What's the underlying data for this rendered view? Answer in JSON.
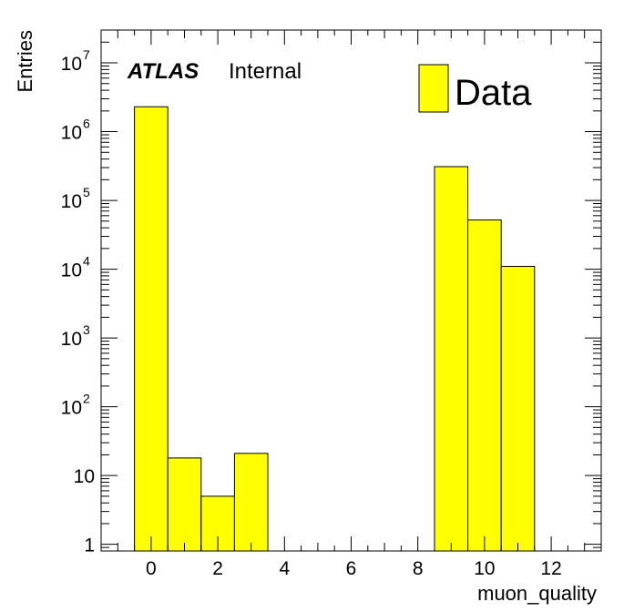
{
  "chart_data": {
    "type": "bar",
    "histogram": true,
    "xlabel": "muon_quality",
    "ylabel": "Entries",
    "xlim": [
      -1.5,
      13.5
    ],
    "ylim": [
      0.8,
      30000000
    ],
    "log_y": true,
    "bin_edges": [
      -0.5,
      0.5,
      1.5,
      2.5,
      3.5,
      4.5,
      5.5,
      6.5,
      7.5,
      8.5,
      9.5,
      10.5,
      11.5
    ],
    "values": [
      2300000,
      18,
      5,
      21,
      0,
      0,
      0,
      0,
      0,
      310000,
      52000,
      11000
    ],
    "series": [
      {
        "name": "Data",
        "color": "#ffff00"
      }
    ],
    "x_ticks": [
      0,
      2,
      4,
      6,
      8,
      10,
      12
    ],
    "x_tick_labels": [
      "0",
      "2",
      "4",
      "6",
      "8",
      "10",
      "12"
    ],
    "y_ticks": [
      {
        "value": 1,
        "base": "1",
        "exp": ""
      },
      {
        "value": 10,
        "base": "10",
        "exp": ""
      },
      {
        "value": 100,
        "base": "10",
        "exp": "2"
      },
      {
        "value": 1000,
        "base": "10",
        "exp": "3"
      },
      {
        "value": 10000,
        "base": "10",
        "exp": "4"
      },
      {
        "value": 100000,
        "base": "10",
        "exp": "5"
      },
      {
        "value": 1000000,
        "base": "10",
        "exp": "6"
      },
      {
        "value": 10000000,
        "base": "10",
        "exp": "7"
      }
    ],
    "label_atlas": "ATLAS",
    "label_status": "Internal",
    "legend_placement": "top-right",
    "grid": false
  }
}
